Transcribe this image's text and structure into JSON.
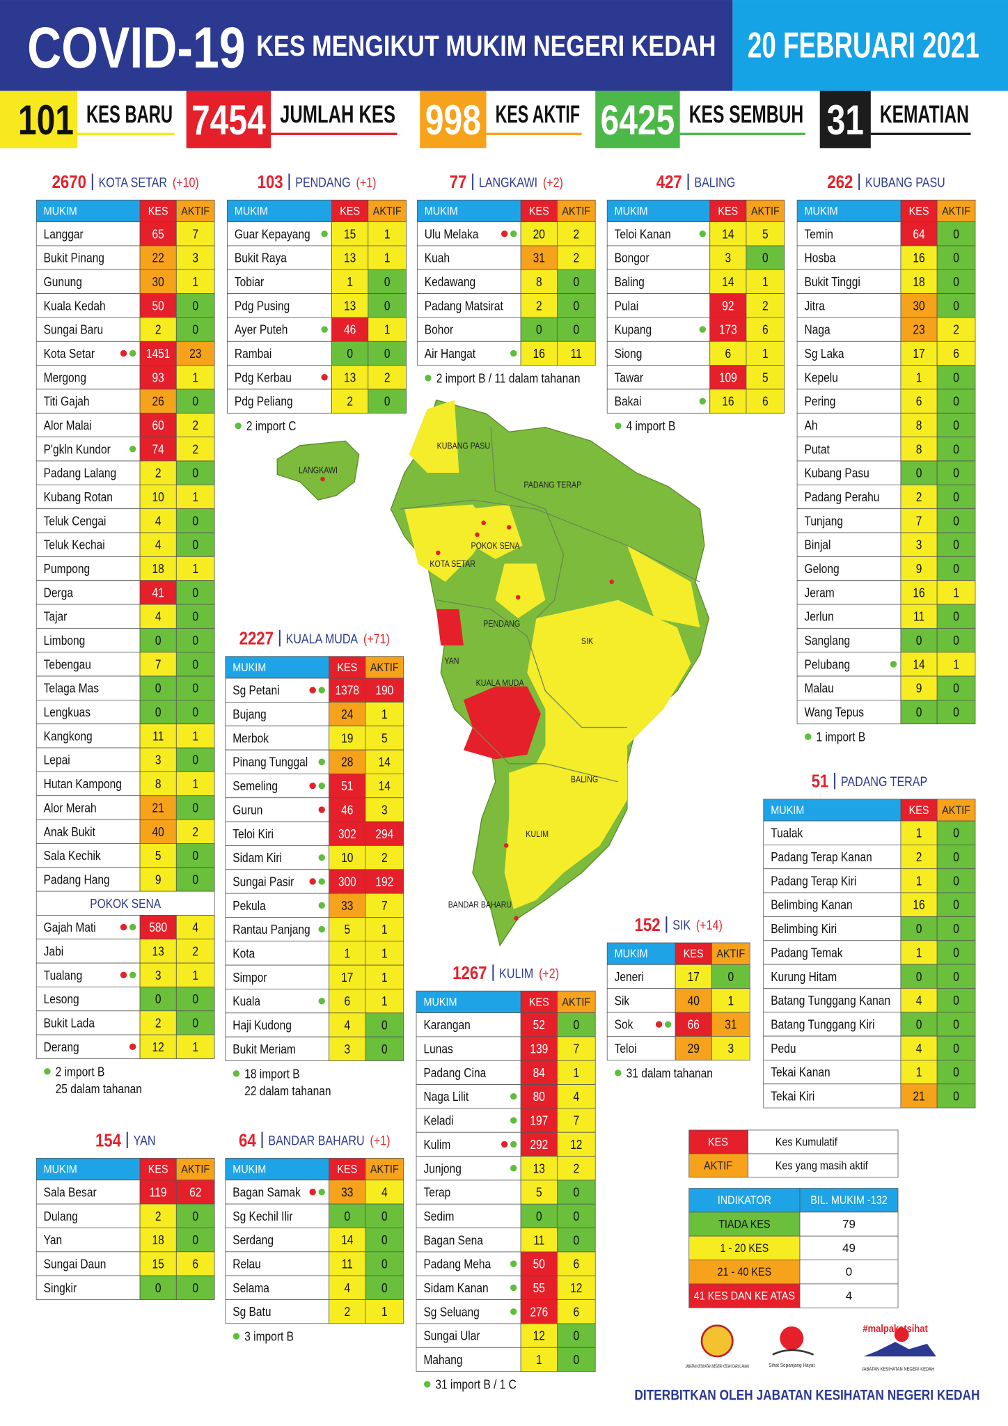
{
  "header": {
    "title": "COVID-19",
    "subtitle": "KES MENGIKUT MUKIM NEGERI KEDAH",
    "date": "20 FEBRUARI 2021"
  },
  "stats": [
    {
      "value": 101,
      "label": "KES BARU"
    },
    {
      "value": 7454,
      "label": "JUMLAH KES"
    },
    {
      "value": 998,
      "label": "KES AKTIF"
    },
    {
      "value": 6425,
      "label": "KES SEMBUH"
    },
    {
      "value": 31,
      "label": "KEMATIAN"
    }
  ],
  "columns": [
    "MUKIM",
    "KES",
    "AKTIF"
  ],
  "districts": [
    {
      "total": 2670,
      "name": "KOTA SETAR",
      "change": "(+10)",
      "groups": [
        {
          "rows": [
            [
              "Langgar",
              65,
              7
            ],
            [
              "Bukit Pinang",
              22,
              3
            ],
            [
              "Gunung",
              30,
              1
            ],
            [
              "Kuala Kedah",
              50,
              0
            ],
            [
              "Sungai Baru",
              2,
              0
            ],
            [
              "Kota Setar",
              1451,
              23,
              [
                "#e5202a",
                "#5bbf3a"
              ]
            ],
            [
              "Mergong",
              93,
              1
            ],
            [
              "Titi Gajah",
              26,
              0
            ],
            [
              "Alor Malai",
              60,
              2
            ],
            [
              "P'gkln Kundor",
              74,
              2,
              [
                "#5bbf3a"
              ]
            ],
            [
              "Padang Lalang",
              2,
              0
            ],
            [
              "Kubang Rotan",
              10,
              1
            ],
            [
              "Teluk Cengai",
              4,
              0
            ],
            [
              "Teluk Kechai",
              4,
              0
            ],
            [
              "Pumpong",
              18,
              1
            ],
            [
              "Derga",
              41,
              0
            ],
            [
              "Tajar",
              4,
              0
            ],
            [
              "Limbong",
              0,
              0
            ],
            [
              "Tebengau",
              7,
              0
            ],
            [
              "Telaga Mas",
              0,
              0
            ],
            [
              "Lengkuas",
              0,
              0
            ],
            [
              "Kangkong",
              11,
              1
            ],
            [
              "Lepai",
              3,
              0
            ],
            [
              "Hutan Kampong",
              8,
              1
            ],
            [
              "Alor Merah",
              21,
              0
            ],
            [
              "Anak Bukit",
              40,
              2
            ],
            [
              "Sala Kechik",
              5,
              0
            ],
            [
              "Padang Hang",
              9,
              0
            ]
          ]
        },
        {
          "title": "POKOK SENA",
          "rows": [
            [
              "Gajah Mati",
              580,
              4,
              [
                "#e5202a",
                "#5bbf3a"
              ]
            ],
            [
              "Jabi",
              13,
              2
            ],
            [
              "Tualang",
              3,
              1,
              [
                "#e5202a",
                "#5bbf3a"
              ]
            ],
            [
              "Lesong",
              0,
              0
            ],
            [
              "Bukit Lada",
              2,
              0
            ],
            [
              "Derang",
              12,
              1,
              [
                "#e5202a"
              ]
            ]
          ]
        }
      ],
      "notes": [
        "2 import B",
        "25 dalam tahanan"
      ]
    },
    {
      "total": 103,
      "name": "PENDANG",
      "change": "(+1)",
      "groups": [
        {
          "rows": [
            [
              "Guar Kepayang",
              15,
              1,
              [
                "#5bbf3a"
              ]
            ],
            [
              "Bukit Raya",
              13,
              1
            ],
            [
              "Tobiar",
              1,
              0
            ],
            [
              "Pdg Pusing",
              13,
              0
            ],
            [
              "Ayer Puteh",
              46,
              1,
              [
                "#5bbf3a"
              ]
            ],
            [
              "Rambai",
              0,
              0
            ],
            [
              "Pdg Kerbau",
              13,
              2,
              [
                "#e5202a"
              ]
            ],
            [
              "Pdg Peliang",
              2,
              0
            ]
          ]
        }
      ],
      "notes": [
        "2 import C"
      ]
    },
    {
      "total": 77,
      "name": "LANGKAWI",
      "change": "(+2)",
      "groups": [
        {
          "rows": [
            [
              "Ulu Melaka",
              20,
              2,
              [
                "#e5202a",
                "#5bbf3a"
              ]
            ],
            [
              "Kuah",
              31,
              2
            ],
            [
              "Kedawang",
              8,
              0
            ],
            [
              "Padang Matsirat",
              2,
              0
            ],
            [
              "Bohor",
              0,
              0
            ],
            [
              "Air Hangat",
              16,
              11,
              [
                "#5bbf3a"
              ]
            ]
          ]
        }
      ],
      "notes": [
        "2 import B / 11 dalam tahanan"
      ]
    },
    {
      "total": 427,
      "name": "BALING",
      "groups": [
        {
          "rows": [
            [
              "Teloi Kanan",
              14,
              5,
              [
                "#5bbf3a"
              ]
            ],
            [
              "Bongor",
              3,
              0
            ],
            [
              "Baling",
              14,
              1
            ],
            [
              "Pulai",
              92,
              2
            ],
            [
              "Kupang",
              173,
              6,
              [
                "#5bbf3a"
              ]
            ],
            [
              "Siong",
              6,
              1
            ],
            [
              "Tawar",
              109,
              5
            ],
            [
              "Bakai",
              16,
              6,
              [
                "#5bbf3a"
              ]
            ]
          ]
        }
      ],
      "notes": [
        "4 import B"
      ]
    },
    {
      "total": 262,
      "name": "KUBANG PASU",
      "groups": [
        {
          "rows": [
            [
              "Temin",
              64,
              0
            ],
            [
              "Hosba",
              16,
              0
            ],
            [
              "Bukit Tinggi",
              18,
              0
            ],
            [
              "Jitra",
              30,
              0
            ],
            [
              "Naga",
              23,
              2
            ],
            [
              "Sg Laka",
              17,
              6
            ],
            [
              "Kepelu",
              1,
              0
            ],
            [
              "Pering",
              6,
              0
            ],
            [
              "Ah",
              8,
              0
            ],
            [
              "Putat",
              8,
              0
            ],
            [
              "Kubang Pasu",
              0,
              0
            ],
            [
              "Padang Perahu",
              2,
              0
            ],
            [
              "Tunjang",
              7,
              0
            ],
            [
              "Binjal",
              3,
              0
            ],
            [
              "Gelong",
              9,
              0
            ],
            [
              "Jeram",
              16,
              1
            ],
            [
              "Jerlun",
              11,
              0
            ],
            [
              "Sanglang",
              0,
              0
            ],
            [
              "Pelubang",
              14,
              1,
              [
                "#5bbf3a"
              ]
            ],
            [
              "Malau",
              9,
              0
            ],
            [
              "Wang Tepus",
              0,
              0
            ]
          ]
        }
      ],
      "notes": [
        "1 import B"
      ]
    },
    {
      "total": 2227,
      "name": "KUALA MUDA",
      "change": "(+71)",
      "groups": [
        {
          "rows": [
            [
              "Sg Petani",
              1378,
              190,
              [
                "#e5202a",
                "#5bbf3a"
              ]
            ],
            [
              "Bujang",
              24,
              1
            ],
            [
              "Merbok",
              19,
              5
            ],
            [
              "Pinang Tunggal",
              28,
              14,
              [
                "#5bbf3a"
              ]
            ],
            [
              "Semeling",
              51,
              14,
              [
                "#e5202a",
                "#5bbf3a"
              ]
            ],
            [
              "Gurun",
              46,
              3,
              [
                "#e5202a"
              ]
            ],
            [
              "Teloi Kiri",
              302,
              294
            ],
            [
              "Sidam Kiri",
              10,
              2,
              [
                "#5bbf3a"
              ]
            ],
            [
              "Sungai Pasir",
              300,
              192,
              [
                "#e5202a",
                "#5bbf3a"
              ]
            ],
            [
              "Pekula",
              33,
              7,
              [
                "#5bbf3a"
              ]
            ],
            [
              "Rantau Panjang",
              5,
              1,
              [
                "#5bbf3a"
              ]
            ],
            [
              "Kota",
              1,
              1
            ],
            [
              "Simpor",
              17,
              1
            ],
            [
              "Kuala",
              6,
              1,
              [
                "#5bbf3a"
              ]
            ],
            [
              "Haji Kudong",
              4,
              0
            ],
            [
              "Bukit Meriam",
              3,
              0
            ]
          ]
        }
      ],
      "notes": [
        "18 import B",
        "22 dalam tahanan"
      ]
    },
    {
      "total": 51,
      "name": "PADANG TERAP",
      "groups": [
        {
          "rows": [
            [
              "Tualak",
              1,
              0
            ],
            [
              "Padang Terap Kanan",
              2,
              0
            ],
            [
              "Padang Terap Kiri",
              1,
              0
            ],
            [
              "Belimbing Kanan",
              16,
              0
            ],
            [
              "Belimbing Kiri",
              0,
              0
            ],
            [
              "Padang Temak",
              1,
              0
            ],
            [
              "Kurung Hitam",
              0,
              0
            ],
            [
              "Batang Tunggang Kanan",
              4,
              0
            ],
            [
              "Batang Tunggang Kiri",
              0,
              0
            ],
            [
              "Pedu",
              4,
              0
            ],
            [
              "Tekai Kanan",
              1,
              0
            ],
            [
              "Tekai Kiri",
              21,
              0
            ]
          ]
        }
      ]
    },
    {
      "total": 152,
      "name": "SIK",
      "change": "(+14)",
      "groups": [
        {
          "rows": [
            [
              "Jeneri",
              17,
              0
            ],
            [
              "Sik",
              40,
              1
            ],
            [
              "Sok",
              66,
              31,
              [
                "#e5202a",
                "#5bbf3a"
              ]
            ],
            [
              "Teloi",
              29,
              3
            ]
          ]
        }
      ],
      "notes": [
        "31 dalam tahanan"
      ]
    },
    {
      "total": 1267,
      "name": "KULIM",
      "change": "(+2)",
      "groups": [
        {
          "rows": [
            [
              "Karangan",
              52,
              0
            ],
            [
              "Lunas",
              139,
              7
            ],
            [
              "Padang Cina",
              84,
              1
            ],
            [
              "Naga Lilit",
              80,
              4,
              [
                "#5bbf3a"
              ]
            ],
            [
              "Keladi",
              197,
              7,
              [
                "#5bbf3a"
              ]
            ],
            [
              "Kulim",
              292,
              12,
              [
                "#e5202a",
                "#5bbf3a"
              ]
            ],
            [
              "Junjong",
              13,
              2,
              [
                "#5bbf3a"
              ]
            ],
            [
              "Terap",
              5,
              0
            ],
            [
              "Sedim",
              0,
              0
            ],
            [
              "Bagan Sena",
              11,
              0
            ],
            [
              "Padang Meha",
              50,
              6,
              [
                "#5bbf3a"
              ]
            ],
            [
              "Sidam Kanan",
              55,
              12,
              [
                "#5bbf3a"
              ]
            ],
            [
              "Sg Seluang",
              276,
              6,
              [
                "#5bbf3a"
              ]
            ],
            [
              "Sungai Ular",
              12,
              0
            ],
            [
              "Mahang",
              1,
              0
            ]
          ]
        }
      ],
      "notes": [
        "31 import B / 1 C"
      ]
    },
    {
      "total": 154,
      "name": "YAN",
      "groups": [
        {
          "rows": [
            [
              "Sala Besar",
              119,
              62
            ],
            [
              "Dulang",
              2,
              0
            ],
            [
              "Yan",
              18,
              0
            ],
            [
              "Sungai Daun",
              15,
              6
            ],
            [
              "Singkir",
              0,
              0
            ]
          ]
        }
      ]
    },
    {
      "total": 64,
      "name": "BANDAR BAHARU",
      "change": "(+1)",
      "groups": [
        {
          "rows": [
            [
              "Bagan Samak",
              33,
              4,
              [
                "#e5202a",
                "#5bbf3a"
              ]
            ],
            [
              "Sg Kechil Ilir",
              0,
              0
            ],
            [
              "Serdang",
              14,
              0
            ],
            [
              "Relau",
              11,
              0
            ],
            [
              "Selama",
              4,
              0
            ],
            [
              "Sg Batu",
              2,
              1
            ]
          ]
        }
      ],
      "notes": [
        "3 import B"
      ]
    }
  ],
  "legend": [
    {
      "key": "KES",
      "text": "Kes Kumulatif"
    },
    {
      "key": "AKTIF",
      "text": "Kes yang masih aktif"
    }
  ],
  "indicator": {
    "columns": [
      "INDIKATOR",
      "BIL. MUKIM -132"
    ],
    "rows": [
      [
        "TIADA KES",
        79
      ],
      [
        "1 - 20 KES",
        49
      ],
      [
        "21 - 40 KES",
        0
      ],
      [
        "41 KES DAN KE ATAS",
        4
      ]
    ]
  },
  "map": {
    "labels": [
      "KUBANG PASU",
      "PADANG TERAP",
      "LANGKAWI",
      "KOTA SETAR",
      "POKOK SENA",
      "PENDANG",
      "YAN",
      "SIK",
      "KUALA MUDA",
      "BALING",
      "KULIM",
      "BANDAR BAHARU"
    ]
  },
  "footer": {
    "logos": [
      "JABATAN KESIHATAN NEGERI KEDAH DARUL AMAN",
      "Sihat Sepanjang Hayat",
      "#malpakatsihat",
      "JABATAN KESIHATAN NEGERI KEDAH"
    ],
    "credit": "DITERBITKAN OLEH JABATAN KESIHATAN NEGERI KEDAH"
  }
}
